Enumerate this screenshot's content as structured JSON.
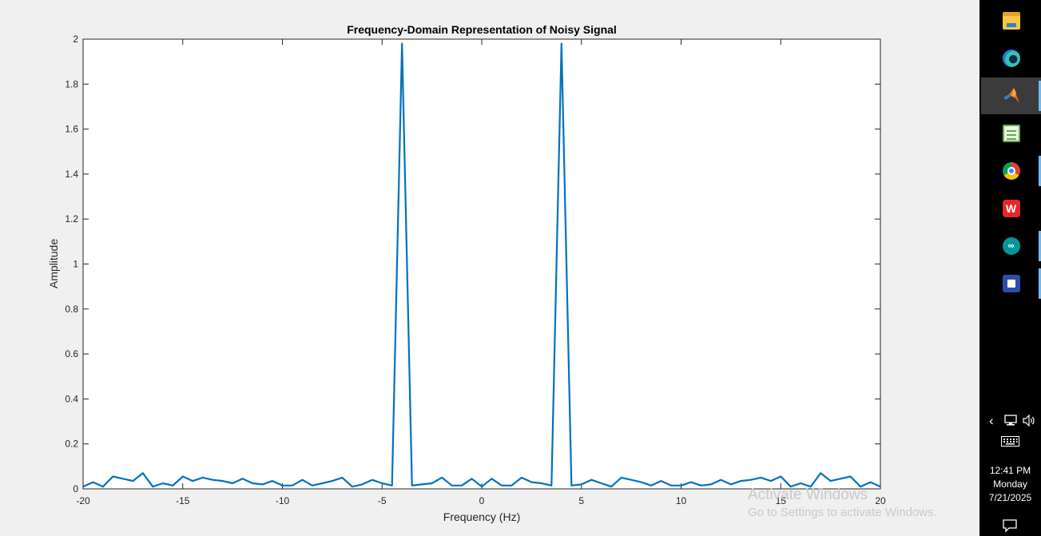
{
  "chart_data": {
    "type": "line",
    "title": "Frequency-Domain Representation of Noisy Signal",
    "xlabel": "Frequency (Hz)",
    "ylabel": "Amplitude",
    "xlim": [
      -20,
      20
    ],
    "ylim": [
      0,
      2
    ],
    "xticks": [
      -20,
      -15,
      -10,
      -5,
      0,
      5,
      10,
      15,
      20
    ],
    "yticks": [
      0,
      0.2,
      0.4,
      0.6,
      0.8,
      1,
      1.2,
      1.4,
      1.6,
      1.8,
      2
    ],
    "xtick_labels": [
      "-20",
      "-15",
      "-10",
      "-5",
      "0",
      "5",
      "10",
      "15",
      "20"
    ],
    "ytick_labels": [
      "0",
      "0.2",
      "0.4",
      "0.6",
      "0.8",
      "1",
      "1.2",
      "1.4",
      "1.6",
      "1.8",
      "2"
    ],
    "grid": false,
    "line_color": "#0072bd",
    "series": [
      {
        "x": [
          -20,
          -19.5,
          -19,
          -18.5,
          -18,
          -17.5,
          -17,
          -16.5,
          -16,
          -15.5,
          -15,
          -14.5,
          -14,
          -13.5,
          -13,
          -12.5,
          -12,
          -11.5,
          -11,
          -10.5,
          -10,
          -9.5,
          -9,
          -8.5,
          -8,
          -7.5,
          -7,
          -6.5,
          -6,
          -5.5,
          -5,
          -4.5,
          -4,
          -3.5,
          -3,
          -2.5,
          -2,
          -1.5,
          -1,
          -0.5,
          0,
          0.5,
          1,
          1.5,
          2,
          2.5,
          3,
          3.5,
          4,
          4.5,
          5,
          5.5,
          6,
          6.5,
          7,
          7.5,
          8,
          8.5,
          9,
          9.5,
          10,
          10.5,
          11,
          11.5,
          12,
          12.5,
          13,
          13.5,
          14,
          14.5,
          15,
          15.5,
          16,
          16.5,
          17,
          17.5,
          18,
          18.5,
          19,
          19.5,
          20
        ],
        "y": [
          0.01,
          0.03,
          0.01,
          0.055,
          0.045,
          0.035,
          0.07,
          0.01,
          0.025,
          0.015,
          0.055,
          0.035,
          0.05,
          0.04,
          0.035,
          0.025,
          0.045,
          0.025,
          0.02,
          0.035,
          0.015,
          0.015,
          0.04,
          0.015,
          0.025,
          0.035,
          0.05,
          0.01,
          0.02,
          0.04,
          0.025,
          0.015,
          1.98,
          0.015,
          0.02,
          0.025,
          0.05,
          0.015,
          0.015,
          0.045,
          0.01,
          0.045,
          0.015,
          0.015,
          0.05,
          0.03,
          0.025,
          0.015,
          1.98,
          0.015,
          0.02,
          0.04,
          0.025,
          0.01,
          0.05,
          0.04,
          0.03,
          0.015,
          0.035,
          0.015,
          0.015,
          0.03,
          0.015,
          0.02,
          0.04,
          0.02,
          0.035,
          0.04,
          0.05,
          0.035,
          0.055,
          0.01,
          0.025,
          0.01,
          0.07,
          0.035,
          0.045,
          0.055,
          0.01,
          0.03,
          0.01
        ]
      }
    ]
  },
  "watermark": {
    "title": "Activate Windows",
    "subtitle": "Go to Settings to activate Windows."
  },
  "taskbar": {
    "apps": [
      {
        "name": "file-explorer-icon",
        "active": false,
        "running": false
      },
      {
        "name": "edge-icon",
        "active": false,
        "running": false
      },
      {
        "name": "matlab-icon",
        "active": true,
        "running": true
      },
      {
        "name": "notepad-icon",
        "active": false,
        "running": false
      },
      {
        "name": "chrome-icon",
        "active": false,
        "running": true
      },
      {
        "name": "wps-office-icon",
        "active": false,
        "running": false
      },
      {
        "name": "arduino-icon",
        "active": false,
        "running": true
      },
      {
        "name": "remote-desktop-icon",
        "active": false,
        "running": true
      }
    ],
    "wps_glyph": "W",
    "arduino_glyph": "∞",
    "tray": {
      "chevron": "‹",
      "network_icon": "network-icon",
      "volume_icon": "volume-icon",
      "keyboard_icon": "touch-keyboard-icon",
      "time": "12:41 PM",
      "day": "Monday",
      "date": "7/21/2025",
      "notification_icon": "action-center-icon"
    }
  }
}
